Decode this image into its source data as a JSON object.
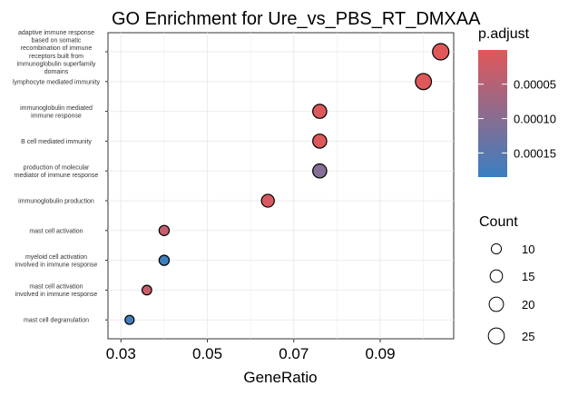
{
  "chart_data": {
    "type": "scatter",
    "title": "GO Enrichment for Ure_vs_PBS_RT_DMXAA",
    "xlabel": "GeneRatio",
    "ylabel": "",
    "xlim": [
      0.027,
      0.107
    ],
    "xticks": [
      0.03,
      0.05,
      0.07,
      0.09
    ],
    "xtick_labels": [
      "0.03",
      "0.05",
      "0.07",
      "0.09"
    ],
    "grid": true,
    "size_legend": {
      "title": "Count",
      "values": [
        10,
        15,
        20,
        25
      ],
      "labels": [
        "10",
        "15",
        "20",
        "25"
      ]
    },
    "color_legend": {
      "title": "p.adjust",
      "range": [
        3e-07,
        0.000185
      ],
      "ticks": [
        5e-05,
        0.0001,
        0.00015
      ],
      "tick_labels": [
        "0.00005",
        "0.00010",
        "0.00015"
      ],
      "low_color": "#e15759",
      "high_color": "#3a7fc1"
    },
    "points": [
      {
        "term": [
          "adaptive immune response",
          "based on somatic",
          "recombination of immune",
          "receptors built from",
          "immunoglobulin superfamily",
          "domains"
        ],
        "gene_ratio": 0.104,
        "count": 26,
        "p_adjust": 1e-06
      },
      {
        "term": [
          "lymphocyte mediated immunity"
        ],
        "gene_ratio": 0.1,
        "count": 25,
        "p_adjust": 3e-06
      },
      {
        "term": [
          "immunoglobulin mediated",
          "immune response"
        ],
        "gene_ratio": 0.076,
        "count": 19,
        "p_adjust": 8e-06
      },
      {
        "term": [
          "B cell mediated immunity"
        ],
        "gene_ratio": 0.076,
        "count": 19,
        "p_adjust": 8e-06
      },
      {
        "term": [
          "production of molecular",
          "mediator of immune response"
        ],
        "gene_ratio": 0.076,
        "count": 19,
        "p_adjust": 0.00011
      },
      {
        "term": [
          "immunoglobulin production"
        ],
        "gene_ratio": 0.064,
        "count": 16,
        "p_adjust": 1.5e-05
      },
      {
        "term": [
          "mast cell activation"
        ],
        "gene_ratio": 0.04,
        "count": 10,
        "p_adjust": 3.5e-05
      },
      {
        "term": [
          "myeloid cell activation",
          "involved in immune response"
        ],
        "gene_ratio": 0.04,
        "count": 10,
        "p_adjust": 0.00018
      },
      {
        "term": [
          "mast cell activation",
          "involved in immune response"
        ],
        "gene_ratio": 0.036,
        "count": 9,
        "p_adjust": 3e-05
      },
      {
        "term": [
          "mast cell degranulation"
        ],
        "gene_ratio": 0.032,
        "count": 8,
        "p_adjust": 0.000175
      }
    ]
  }
}
